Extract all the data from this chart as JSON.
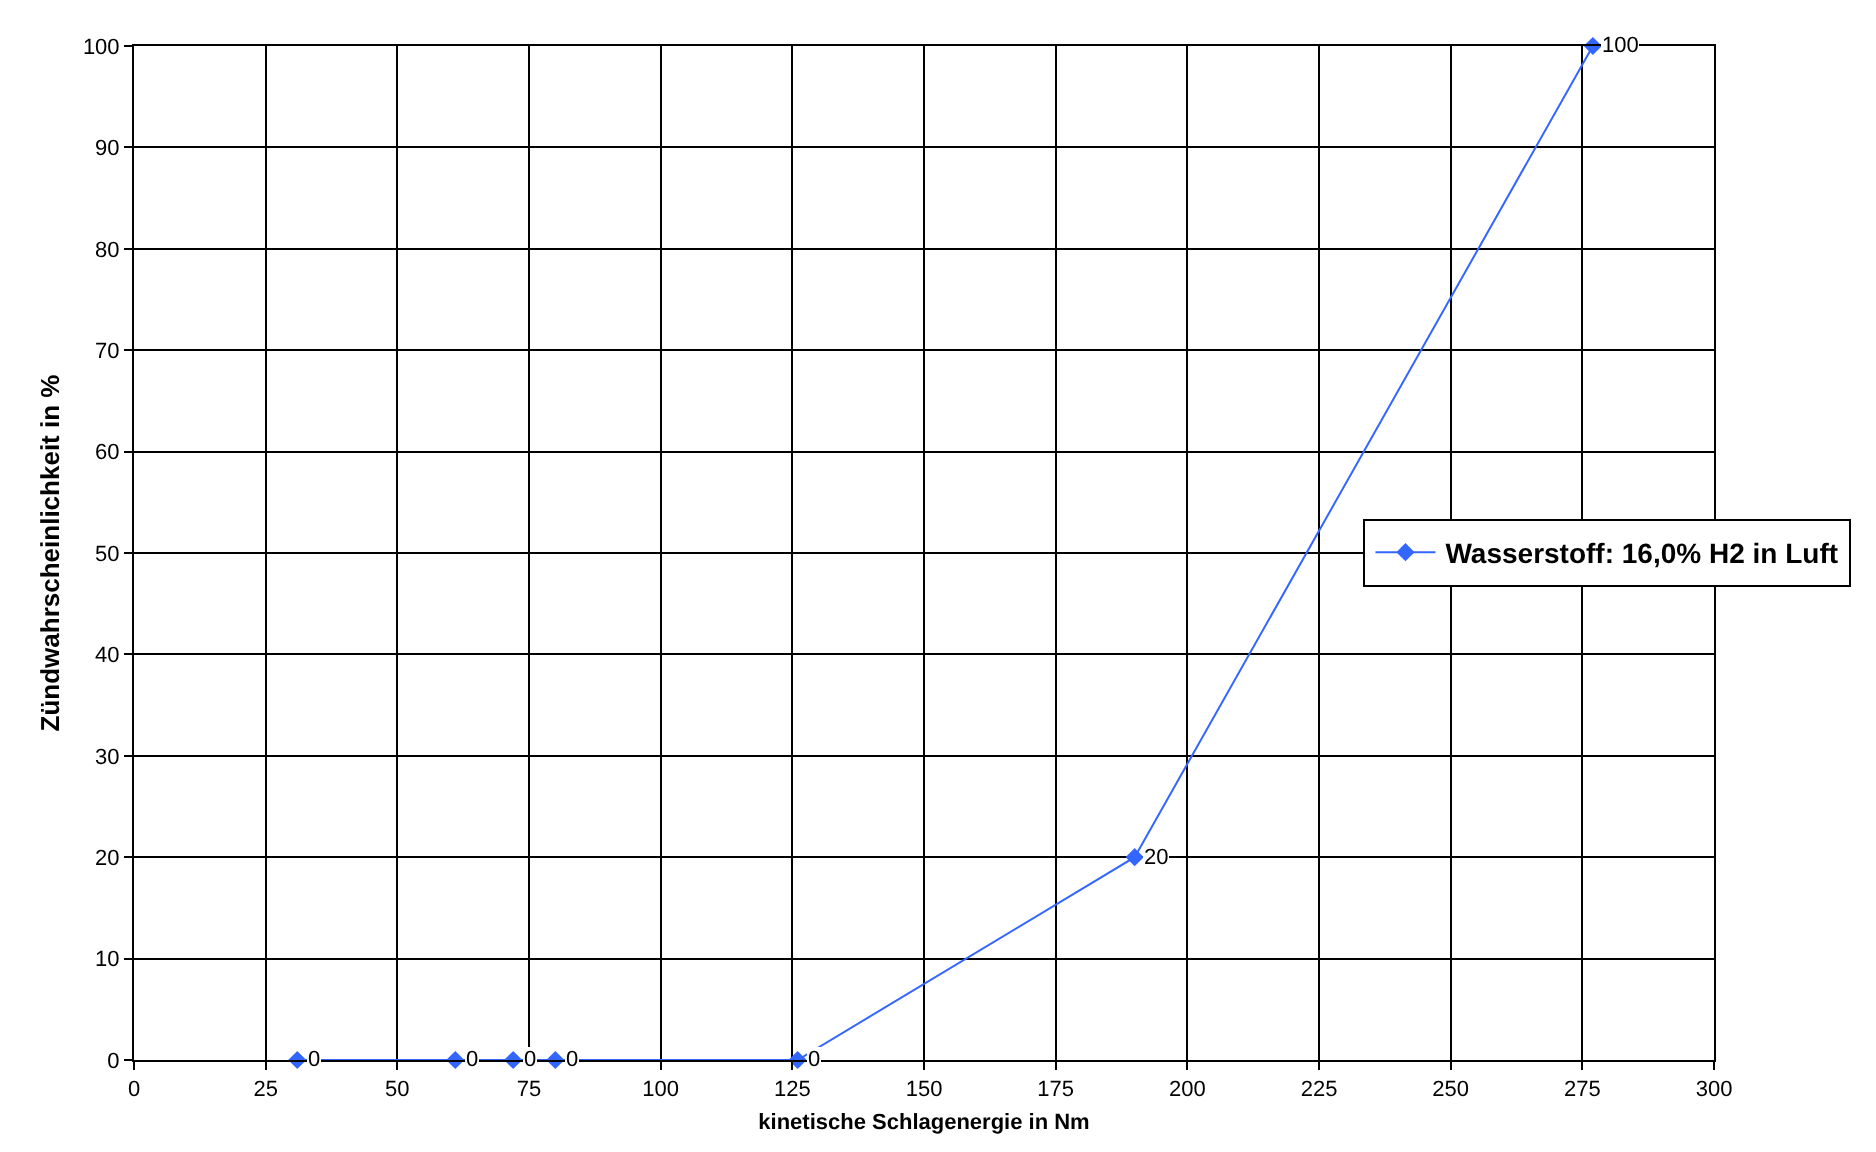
{
  "chart_data": {
    "type": "line",
    "xlabel": "kinetische Schlagenergie in Nm",
    "ylabel": "Zündwahrscheinlichkeit in %",
    "x": [
      31,
      61,
      72,
      80,
      126,
      190,
      277
    ],
    "series": [
      {
        "name": "Wasserstoff: 16,0% H2 in Luft",
        "color": "#3366ff",
        "values": [
          0,
          0,
          0,
          0,
          0,
          20,
          100
        ]
      }
    ],
    "xlim": [
      0,
      300
    ],
    "xticks": [
      0,
      25,
      50,
      75,
      100,
      125,
      150,
      175,
      200,
      225,
      250,
      275,
      300
    ],
    "ylim": [
      0,
      100
    ],
    "yticks": [
      0,
      10,
      20,
      30,
      40,
      50,
      60,
      70,
      80,
      90,
      100
    ],
    "grid": true,
    "legend": "right",
    "marker": "diamond",
    "line_style": "solid",
    "data_labels": true
  }
}
